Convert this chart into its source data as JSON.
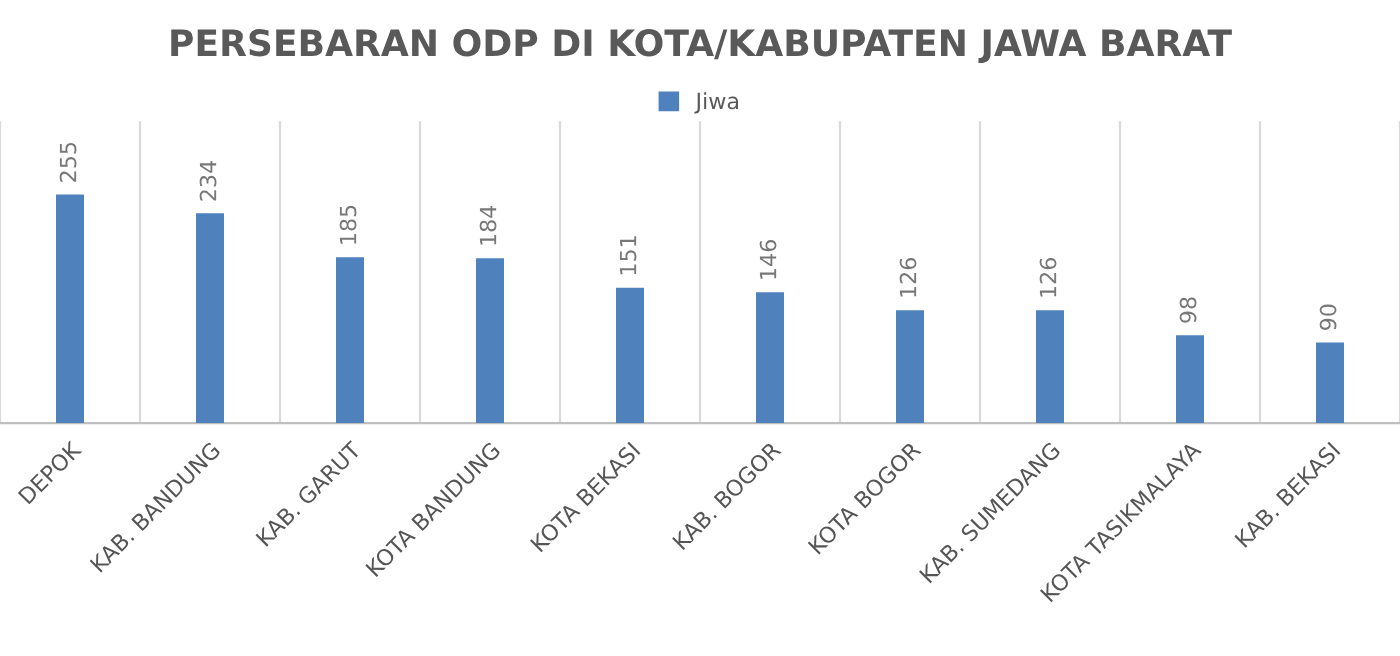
{
  "chart_data": {
    "type": "bar",
    "title": "PERSEBARAN ODP DI KOTA/KABUPATEN JAWA BARAT",
    "categories": [
      "DEPOK",
      "KAB. BANDUNG",
      "KAB. GARUT",
      "KOTA BANDUNG",
      "KOTA BEKASI",
      "KAB. BOGOR",
      "KOTA BOGOR",
      "KAB. SUMEDANG",
      "KOTA TASIKMALAYA",
      "KAB. BEKASI"
    ],
    "series": [
      {
        "name": "Jiwa",
        "color": "#4f81bd",
        "values": [
          255,
          234,
          185,
          184,
          151,
          146,
          126,
          126,
          98,
          90
        ]
      }
    ],
    "data_labels": true,
    "grid": "x",
    "legend": "top"
  }
}
